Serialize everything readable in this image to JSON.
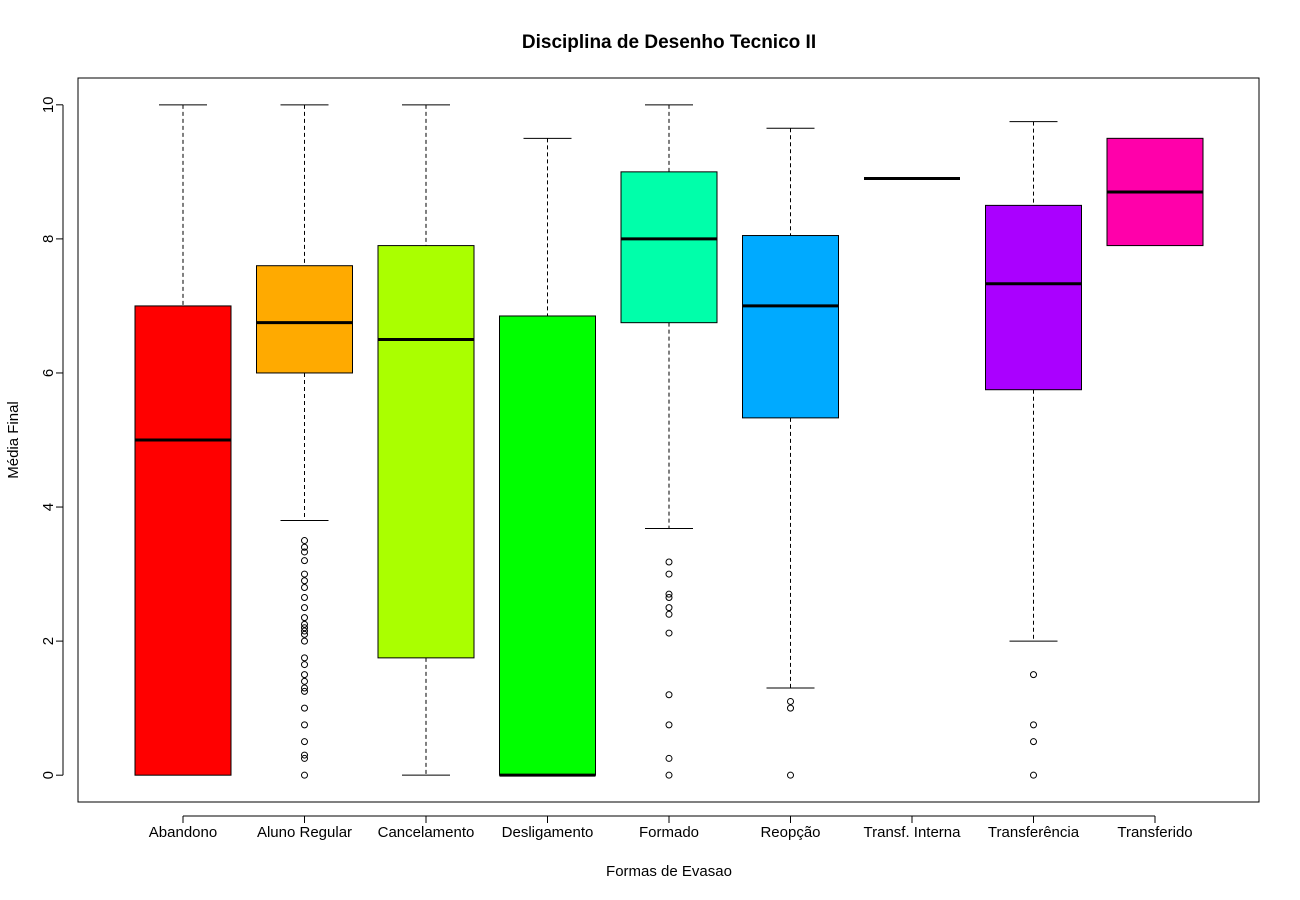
{
  "chart_data": {
    "type": "boxplot",
    "title": "Disciplina de Desenho Tecnico II",
    "xlabel": "Formas de Evasao",
    "ylabel": "Média Final",
    "ylim": [
      -0.4,
      10.4
    ],
    "yticks": [
      0,
      2,
      4,
      6,
      8,
      10
    ],
    "grid": false,
    "legend": "none",
    "categories": [
      "Abandono",
      "Aluno Regular",
      "Cancelamento",
      "Desligamento",
      "Formado",
      "Reopção",
      "Transf. Interna",
      "Transferência",
      "Transferido"
    ],
    "series": [
      {
        "category": "Abandono",
        "color": "#FF0000",
        "min": 0,
        "q1": 0,
        "median": 5,
        "q3": 7,
        "max": 10,
        "outliers": []
      },
      {
        "category": "Aluno Regular",
        "color": "#FFAA00",
        "min": 3.8,
        "q1": 6,
        "median": 6.75,
        "q3": 7.6,
        "max": 10,
        "outliers": [
          3.5,
          3.4,
          3.33,
          3.2,
          3.0,
          2.9,
          2.8,
          2.65,
          2.5,
          2.35,
          2.25,
          2.2,
          2.15,
          2.1,
          2.0,
          1.75,
          1.65,
          1.5,
          1.4,
          1.3,
          1.25,
          1.0,
          0.75,
          0.5,
          0.3,
          0.25,
          0
        ]
      },
      {
        "category": "Cancelamento",
        "color": "#AAFF00",
        "min": 0,
        "q1": 1.75,
        "median": 6.5,
        "q3": 7.9,
        "max": 10,
        "outliers": []
      },
      {
        "category": "Desligamento",
        "color": "#00FF00",
        "min": 0,
        "q1": 0,
        "median": 0,
        "q3": 6.85,
        "max": 9.5,
        "outliers": []
      },
      {
        "category": "Formado",
        "color": "#00FFAA",
        "min": 3.68,
        "q1": 6.75,
        "median": 8,
        "q3": 9,
        "max": 10,
        "outliers": [
          3.18,
          3.0,
          2.7,
          2.65,
          2.5,
          2.4,
          2.12,
          1.2,
          0.75,
          0.25,
          0
        ]
      },
      {
        "category": "Reopção",
        "color": "#00AAFF",
        "min": 1.3,
        "q1": 5.33,
        "median": 7,
        "q3": 8.05,
        "max": 9.65,
        "outliers": [
          1.1,
          1.0,
          0
        ]
      },
      {
        "category": "Transf. Interna",
        "color": "#0000FF",
        "min": 8.9,
        "q1": 8.9,
        "median": 8.9,
        "q3": 8.9,
        "max": 8.9,
        "outliers": []
      },
      {
        "category": "Transferência",
        "color": "#AA00FF",
        "min": 2,
        "q1": 5.75,
        "median": 7.33,
        "q3": 8.5,
        "max": 9.75,
        "outliers": [
          1.5,
          0.75,
          0.5,
          0
        ]
      },
      {
        "category": "Transferido",
        "color": "#FF00AA",
        "min": 7.9,
        "q1": 7.9,
        "median": 8.7,
        "q3": 9.5,
        "max": 9.5,
        "outliers": []
      }
    ]
  }
}
